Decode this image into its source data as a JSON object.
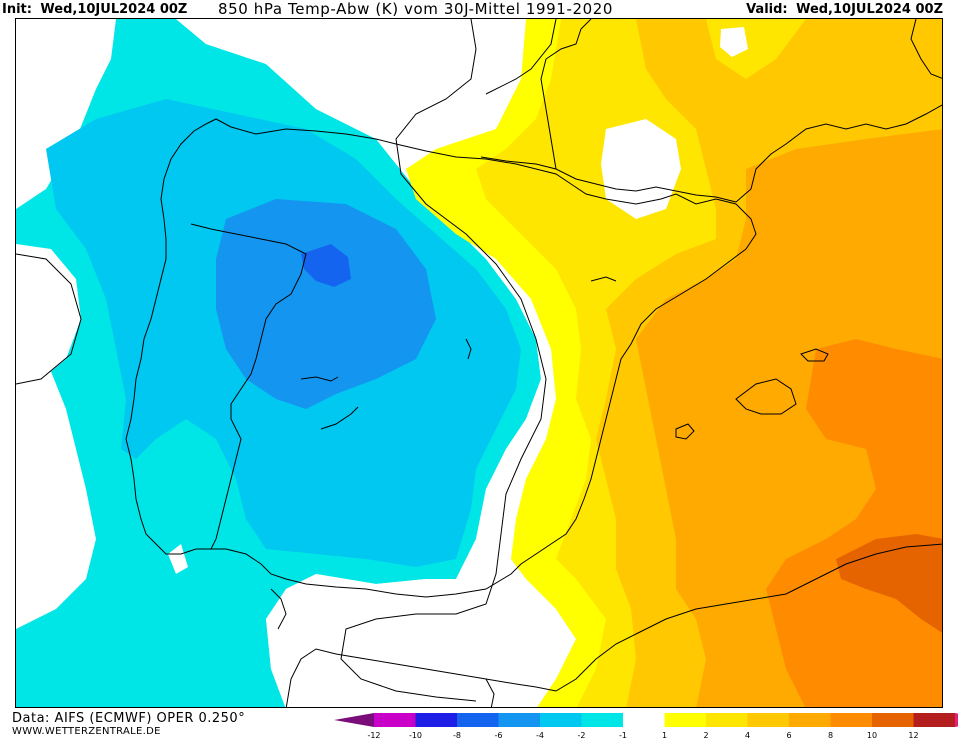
{
  "header": {
    "init_label": "Init:",
    "init_value": "Wed,10JUL2024 00Z",
    "title": "850 hPa Temp-Abw (K) vom 30J-Mittel 1991-2020",
    "valid_label": "Valid:",
    "valid_value": "Wed,10JUL2024 00Z"
  },
  "footer": {
    "data_source": "Data: AIFS (ECMWF) OPER 0.250°",
    "website": "WWW.WETTERZENTRALE.DE"
  },
  "legend": {
    "bins": [
      {
        "color": "#7a0d7a"
      },
      {
        "color": "#c800c8"
      },
      {
        "color": "#1e1ee6"
      },
      {
        "color": "#1464f0"
      },
      {
        "color": "#1496f0"
      },
      {
        "color": "#00c8f0"
      },
      {
        "color": "#00e6e6"
      },
      {
        "color": "#ffffff"
      },
      {
        "color": "#ffff00"
      },
      {
        "color": "#ffe600"
      },
      {
        "color": "#ffc800"
      },
      {
        "color": "#ffaa00"
      },
      {
        "color": "#ff8c00"
      },
      {
        "color": "#e66400"
      },
      {
        "color": "#b41e1e"
      },
      {
        "color": "#e61e78"
      }
    ],
    "ticks": [
      "-12",
      "-10",
      "-8",
      "-6",
      "-4",
      "-2",
      "-1",
      "1",
      "2",
      "4",
      "6",
      "8",
      "10",
      "12"
    ]
  },
  "map": {
    "region": "Iberian Peninsula and Western Mediterranean",
    "colors": {
      "cyan": "#00e6e6",
      "light_blue": "#00c8f0",
      "mid_blue": "#1496f0",
      "blue": "#1464f0",
      "white": "#ffffff",
      "yellow": "#ffff00",
      "gold": "#ffe600",
      "amber": "#ffc800",
      "orange_light": "#ffaa00",
      "orange": "#ff8c00",
      "dark_orange": "#e66400"
    }
  }
}
